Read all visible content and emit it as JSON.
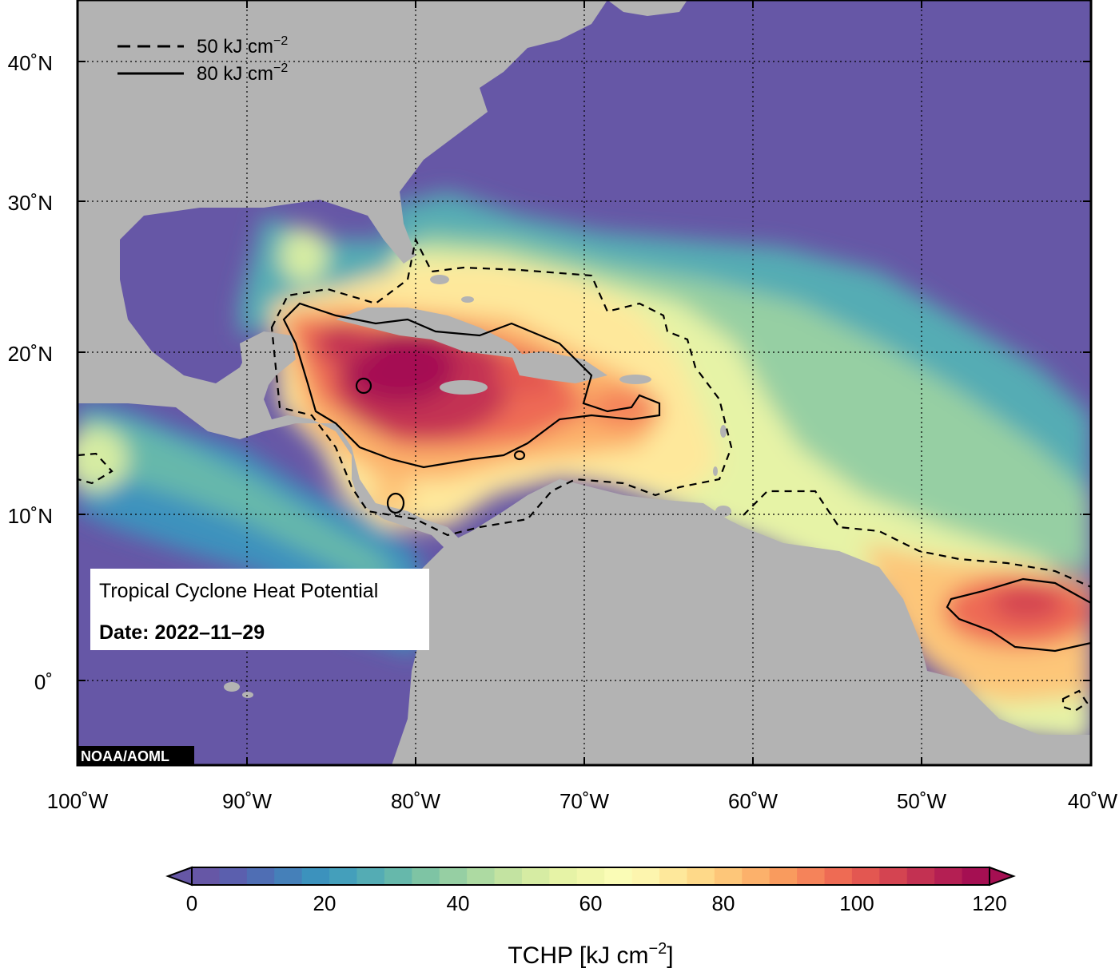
{
  "map": {
    "title": "Tropical Cyclone Heat Potential",
    "date_label": "Date: 2022–11–29",
    "credit": "NOAA/AOML",
    "lon_labels": [
      "100˚W",
      "90˚W",
      "80˚W",
      "70˚W",
      "60˚W",
      "50˚W",
      "40˚W"
    ],
    "lat_labels": [
      "40˚N",
      "30˚N",
      "20˚N",
      "10˚N",
      "0˚"
    ],
    "legend": {
      "dashed": "50 kJ cm",
      "solid": "80 kJ cm",
      "superscript": "−2"
    },
    "colors": {
      "land": "#b3b3b3",
      "cold_ocean": "#6657a6",
      "hot_core": "#a50f52"
    }
  },
  "colorbar": {
    "title": "TCHP [kJ cm",
    "title_sup": "−2",
    "title_end": "]",
    "ticks": [
      "0",
      "20",
      "40",
      "60",
      "80",
      "100",
      "120"
    ],
    "colors": [
      "#6657a6",
      "#5b5fae",
      "#4f6eb4",
      "#4580b9",
      "#3c92bd",
      "#449fbb",
      "#54acb4",
      "#66b8ab",
      "#7ec4a4",
      "#96cfa3",
      "#addaa2",
      "#c3e3a1",
      "#d6eca3",
      "#e6f3a6",
      "#f1f7ac",
      "#fafcb6",
      "#fdf5ae",
      "#fee89b",
      "#fed989",
      "#fdc679",
      "#fcb16b",
      "#f99b5e",
      "#f5835a",
      "#ee6b54",
      "#e35751",
      "#d44451",
      "#c33152",
      "#b41f53",
      "#a50f52"
    ]
  }
}
